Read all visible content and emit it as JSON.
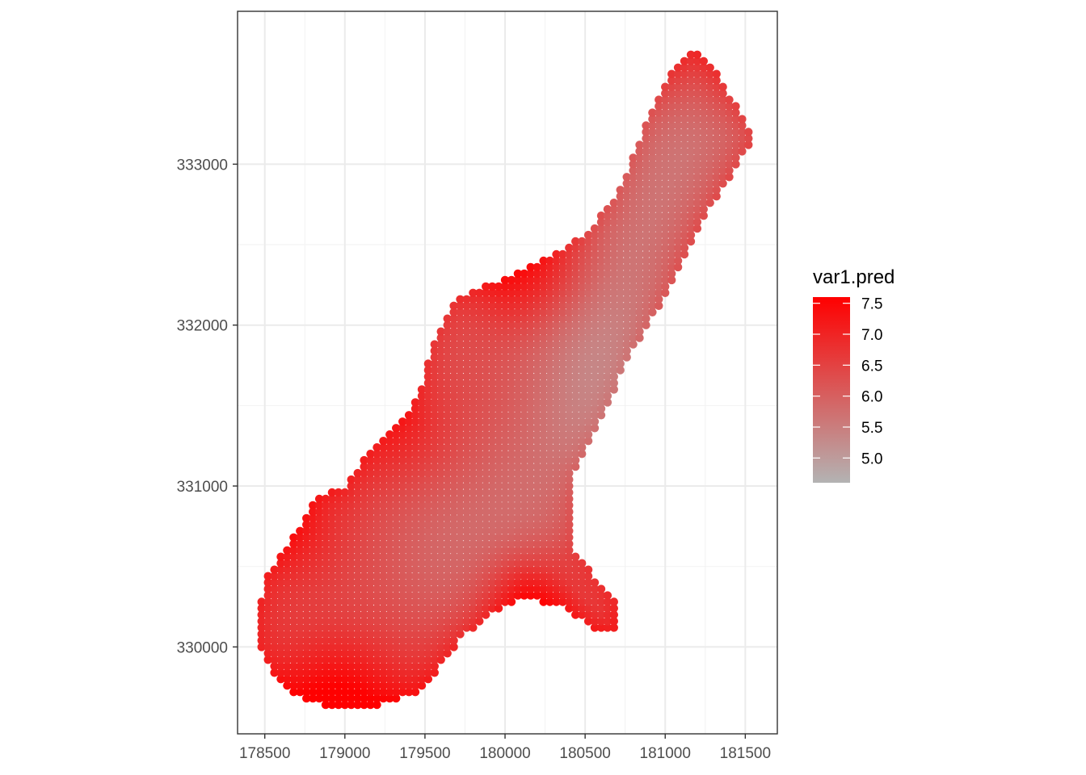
{
  "chart_data": {
    "type": "scatter",
    "title": "",
    "xlabel": "",
    "ylabel": "",
    "xlim": [
      178330,
      181700
    ],
    "ylim": [
      329460,
      333950
    ],
    "grid": true,
    "x_ticks": [
      178500,
      179000,
      179500,
      180000,
      180500,
      181000,
      181500
    ],
    "x_tick_labels": [
      "178500",
      "179000",
      "179500",
      "180000",
      "180500",
      "181000",
      "181500"
    ],
    "y_ticks": [
      330000,
      331000,
      332000,
      333000
    ],
    "y_tick_labels": [
      "330000",
      "331000",
      "332000",
      "333000"
    ],
    "grid_spacing": 40,
    "boundary": [
      [
        178460,
        330160
      ],
      [
        178500,
        330420
      ],
      [
        178590,
        330560
      ],
      [
        178700,
        330720
      ],
      [
        178780,
        330860
      ],
      [
        178860,
        330940
      ],
      [
        179000,
        330990
      ],
      [
        179080,
        331100
      ],
      [
        179180,
        331260
      ],
      [
        179300,
        331360
      ],
      [
        179400,
        331440
      ],
      [
        179480,
        331620
      ],
      [
        179560,
        331900
      ],
      [
        179660,
        332120
      ],
      [
        179800,
        332230
      ],
      [
        179980,
        332270
      ],
      [
        180100,
        332330
      ],
      [
        180300,
        332430
      ],
      [
        180480,
        332550
      ],
      [
        180660,
        332750
      ],
      [
        180780,
        333000
      ],
      [
        180900,
        333300
      ],
      [
        181030,
        333550
      ],
      [
        181170,
        333720
      ],
      [
        181300,
        333600
      ],
      [
        181430,
        333380
      ],
      [
        181550,
        333170
      ],
      [
        181440,
        332980
      ],
      [
        181240,
        332660
      ],
      [
        181040,
        332250
      ],
      [
        180800,
        331850
      ],
      [
        180600,
        331430
      ],
      [
        180430,
        331080
      ],
      [
        180400,
        330900
      ],
      [
        180440,
        330600
      ],
      [
        180560,
        330440
      ],
      [
        180700,
        330280
      ],
      [
        180700,
        330080
      ],
      [
        180550,
        330120
      ],
      [
        180350,
        330250
      ],
      [
        180120,
        330300
      ],
      [
        179900,
        330200
      ],
      [
        179720,
        330050
      ],
      [
        179560,
        329830
      ],
      [
        179450,
        329720
      ],
      [
        179200,
        329630
      ],
      [
        178880,
        329630
      ],
      [
        178680,
        329700
      ],
      [
        178540,
        329850
      ],
      [
        178460,
        330000
      ]
    ],
    "value_field": "var1.pred",
    "color_range": [
      4.6,
      7.6
    ],
    "color_low": "#b3b3b3",
    "color_high": "#ff0000",
    "surface": {
      "base": 6.2,
      "trend": [
        {
          "type": "linear",
          "dx_per_1000m": 0.2,
          "dy_per_1000m": -0.3,
          "origin": [
            179800,
            331500
          ]
        }
      ],
      "bumps": [
        {
          "center": [
            180900,
            331200
          ],
          "amplitude": -1.4,
          "radius": 550
        },
        {
          "center": [
            179800,
            330500
          ],
          "amplitude": -0.6,
          "radius": 420
        },
        {
          "center": [
            180600,
            332000
          ],
          "amplitude": -0.5,
          "radius": 450
        },
        {
          "center": [
            181000,
            333000
          ],
          "amplitude": -0.4,
          "radius": 500
        },
        {
          "center": [
            180050,
            332250
          ],
          "amplitude": 0.8,
          "radius": 260
        },
        {
          "center": [
            180150,
            330330
          ],
          "amplitude": 0.9,
          "radius": 200
        },
        {
          "center": [
            178950,
            329680
          ],
          "amplitude": 0.9,
          "radius": 260
        },
        {
          "center": [
            178700,
            330750
          ],
          "amplitude": 0.6,
          "radius": 280
        },
        {
          "center": [
            181180,
            333720
          ],
          "amplitude": 0.7,
          "radius": 260
        },
        {
          "center": [
            179350,
            331300
          ],
          "amplitude": 0.6,
          "radius": 250
        },
        {
          "center": [
            180300,
            332350
          ],
          "amplitude": 0.5,
          "radius": 250
        },
        {
          "center": [
            180000,
            331600
          ],
          "amplitude": 0.3,
          "radius": 300
        }
      ],
      "edge_boost": 0.6
    },
    "legend": {
      "title": "var1.pred",
      "position": "right",
      "breaks": [
        7.5,
        7.0,
        6.5,
        6.0,
        5.5,
        5.0
      ],
      "labels": [
        "7.5",
        "7.0",
        "6.5",
        "6.0",
        "5.5",
        "5.0"
      ]
    }
  }
}
